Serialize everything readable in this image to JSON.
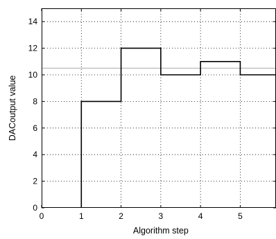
{
  "chart_data": {
    "type": "line",
    "subtype": "step",
    "title": "",
    "xlabel": "Algorithm step",
    "ylabel": "DACoutput value",
    "xlim": [
      0,
      5.9
    ],
    "ylim": [
      0,
      15
    ],
    "xticks": [
      0,
      1,
      2,
      3,
      4,
      5
    ],
    "yticks": [
      0,
      2,
      4,
      6,
      8,
      10,
      12,
      14
    ],
    "grid": true,
    "grid_style": "dotted",
    "series": [
      {
        "x": [
          1,
          1,
          2,
          2,
          3,
          3,
          4,
          4,
          5,
          5,
          5.9
        ],
        "y": [
          0,
          8,
          8,
          12,
          12,
          10,
          10,
          11,
          11,
          10,
          10
        ],
        "color": "#000000"
      }
    ],
    "reference_lines": [
      {
        "orientation": "horizontal",
        "y": 10.5,
        "color": "#aaaaaa"
      }
    ]
  }
}
